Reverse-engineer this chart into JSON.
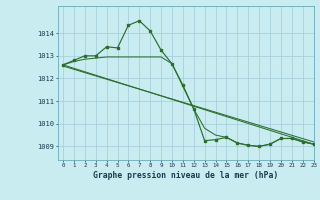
{
  "xlabel": "Graphe pression niveau de la mer (hPa)",
  "background_color": "#c8ecf0",
  "grid_color": "#a0ccd8",
  "line_color": "#2d6e2d",
  "ylim": [
    1008.4,
    1015.2
  ],
  "xlim": [
    -0.5,
    23
  ],
  "yticks": [
    1009,
    1010,
    1011,
    1012,
    1013,
    1014
  ],
  "xtick_labels": [
    "0",
    "1",
    "2",
    "3",
    "4",
    "5",
    "6",
    "7",
    "8",
    "9",
    "10",
    "11",
    "12",
    "13",
    "14",
    "15",
    "16",
    "17",
    "18",
    "19",
    "20",
    "21",
    "22",
    "23"
  ],
  "series1_x": [
    0,
    1,
    2,
    3,
    4,
    5,
    6,
    7,
    8,
    9,
    10,
    11,
    12,
    13,
    14,
    15,
    16,
    17,
    18,
    19,
    20,
    21,
    22,
    23
  ],
  "series1_y": [
    1012.6,
    1012.8,
    1013.0,
    1013.0,
    1013.4,
    1013.35,
    1014.35,
    1014.55,
    1014.1,
    1013.25,
    1012.65,
    1011.7,
    1010.65,
    1009.25,
    1009.3,
    1009.4,
    1009.15,
    1009.05,
    1009.0,
    1009.1,
    1009.35,
    1009.35,
    1009.2,
    1009.1
  ],
  "series2_x": [
    0,
    1,
    2,
    3,
    4,
    5,
    6,
    7,
    8,
    9,
    10,
    11,
    12,
    13,
    14,
    15,
    16,
    17,
    18,
    19,
    20,
    21,
    22,
    23
  ],
  "series2_y": [
    1012.6,
    1012.75,
    1012.85,
    1012.9,
    1012.95,
    1012.95,
    1012.95,
    1012.95,
    1012.95,
    1012.95,
    1012.65,
    1011.65,
    1010.65,
    1009.8,
    1009.5,
    1009.4,
    1009.15,
    1009.05,
    1009.0,
    1009.1,
    1009.35,
    1009.35,
    1009.2,
    1009.1
  ],
  "series3_x": [
    0,
    23
  ],
  "series3_y": [
    1012.6,
    1009.1
  ],
  "series4_x": [
    0,
    23
  ],
  "series4_y": [
    1012.55,
    1009.2
  ]
}
